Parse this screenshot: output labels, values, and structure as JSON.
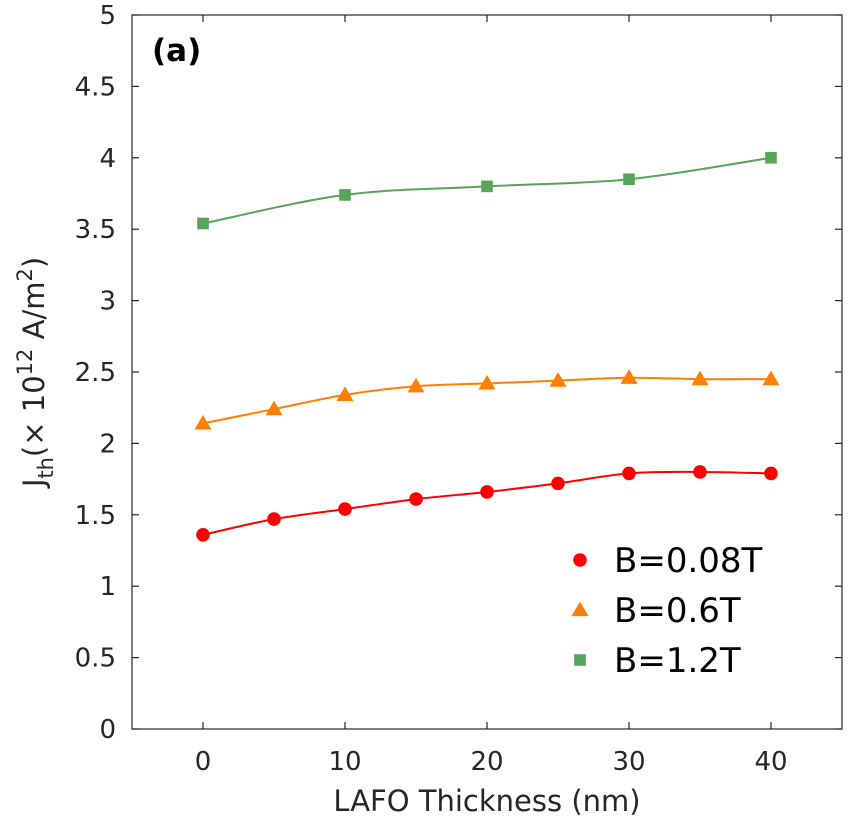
{
  "chart_data": {
    "type": "line",
    "panel_label": "(a)",
    "xlabel": "LAFO Thickness (nm)",
    "ylabel": {
      "main": "J",
      "sub": "th",
      "prefix": "(× 10",
      "exp": "12",
      "unit": " A/m",
      "unit_exp": "2",
      "suffix": ")"
    },
    "xlim": [
      -5,
      45
    ],
    "ylim": [
      0,
      5
    ],
    "x_ticks": [
      0,
      10,
      20,
      30,
      40
    ],
    "x_tick_labels": [
      "0",
      "10",
      "20",
      "30",
      "40"
    ],
    "y_ticks": [
      0,
      0.5,
      1,
      1.5,
      2,
      2.5,
      3,
      3.5,
      4,
      4.5,
      5
    ],
    "y_tick_labels": [
      "0",
      "0.5",
      "1",
      "1.5",
      "2",
      "2.5",
      "3",
      "3.5",
      "4",
      "4.5",
      "5"
    ],
    "grid": false,
    "legend_position": "bottom-right",
    "series": [
      {
        "name": "B=0.08T",
        "marker": "circle",
        "color": "#ff0000",
        "x": [
          0,
          5,
          10,
          15,
          20,
          25,
          30,
          35,
          40
        ],
        "y": [
          1.36,
          1.47,
          1.54,
          1.61,
          1.66,
          1.72,
          1.79,
          1.8,
          1.79
        ]
      },
      {
        "name": "B=0.6T",
        "marker": "triangle",
        "color": "#ff8000",
        "x": [
          0,
          5,
          10,
          15,
          20,
          25,
          30,
          35,
          40
        ],
        "y": [
          2.14,
          2.24,
          2.34,
          2.4,
          2.42,
          2.44,
          2.46,
          2.45,
          2.45
        ]
      },
      {
        "name": "B=1.2T",
        "marker": "square",
        "color": "#5aa35a",
        "x": [
          0,
          10,
          20,
          30,
          40
        ],
        "y": [
          3.54,
          3.74,
          3.8,
          3.85,
          4.0
        ]
      }
    ]
  }
}
